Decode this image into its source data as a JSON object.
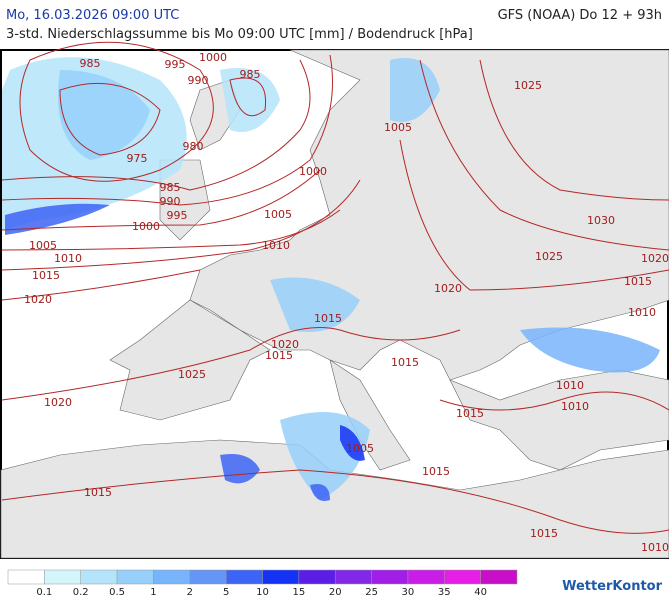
{
  "header": {
    "left": "Mo, 16.03.2026 09:00 UTC",
    "right": "GFS (NOAA) Do 12 + 93h",
    "subtitle": "3-std. Niederschlagssumme bis Mo 09:00 UTC [mm] / Bodendruck [hPa]"
  },
  "isobar_labels": [
    985,
    995,
    1000,
    990,
    985,
    975,
    980,
    985,
    990,
    995,
    1000,
    1000,
    1005,
    1005,
    1025,
    1030,
    1025,
    1020,
    1015,
    1010,
    1020,
    1005,
    1010,
    1015,
    1020,
    1010,
    1015,
    1020,
    1015,
    1025,
    1015,
    1020,
    1010,
    1010,
    1015,
    1005,
    1015,
    1015,
    1015,
    1010
  ],
  "legend": {
    "colors": [
      "#ffffff",
      "#d2f6fa",
      "#b4e4fa",
      "#96d0fa",
      "#78b4fa",
      "#6496f5",
      "#3c64f5",
      "#1432f5",
      "#5a1ee6",
      "#8228e6",
      "#a01ee6",
      "#c81ee6",
      "#e61ee6",
      "#c80fc8"
    ],
    "values": [
      0.1,
      0.2,
      0.5,
      1,
      2,
      5,
      10,
      15,
      20,
      25,
      30,
      35,
      40
    ]
  },
  "brand": "WetterKontor"
}
